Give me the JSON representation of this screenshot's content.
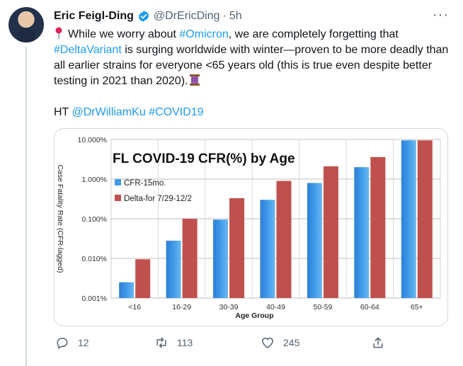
{
  "tweet": {
    "author_name": "Eric Feigl-Ding",
    "handle": "@DrEricDing",
    "time": "5h",
    "more_label": "···",
    "text": {
      "pin_icon": "pushpin-icon",
      "t1": "While we worry about ",
      "h_omicron": "#Omicron",
      "t2": ", we are completely forgetting that ",
      "h_delta": "#DeltaVariant",
      "t3": " is surging worldwide with winter—proven to be more deadly than all earlier strains for everyone <65 years old (this is true even despite better testing in 2021 than 2020).",
      "spool_icon": "thread-spool-icon",
      "ht_prefix": "HT ",
      "mention": "@DrWilliamKu",
      "h_covid": "#COVID19"
    },
    "actions": {
      "replies": "12",
      "retweets": "113",
      "likes": "245"
    },
    "colors": {
      "link": "#1d9bf0",
      "verified": "#1d9bf0",
      "muted": "#536471"
    }
  },
  "chart_data": {
    "type": "bar",
    "title": "FL COVID-19 CFR(%) by Age",
    "xlabel": "Age Group",
    "ylabel": "Case Fatality Rate (CFR-lagged)",
    "yscale": "log",
    "ylim": [
      0.001,
      10
    ],
    "yticks": [
      {
        "value": 10,
        "label": "10.000%"
      },
      {
        "value": 1,
        "label": "1.000%"
      },
      {
        "value": 0.1,
        "label": "0.100%"
      },
      {
        "value": 0.01,
        "label": "0.010%"
      },
      {
        "value": 0.001,
        "label": "0.001%"
      }
    ],
    "categories": [
      "<16",
      "16-29",
      "30-39",
      "40-49",
      "50-59",
      "60-64",
      "65+"
    ],
    "series": [
      {
        "name": "CFR-15mo.",
        "color": "#3f9bea",
        "values": [
          0.0025,
          0.028,
          0.095,
          0.3,
          0.8,
          2.0,
          9.5
        ]
      },
      {
        "name": "Delta-for 7/29-12/2",
        "color": "#c0504d",
        "values": [
          0.0095,
          0.1,
          0.33,
          0.9,
          2.1,
          3.6,
          9.5
        ]
      }
    ],
    "grid": true,
    "legend": "top-left"
  }
}
